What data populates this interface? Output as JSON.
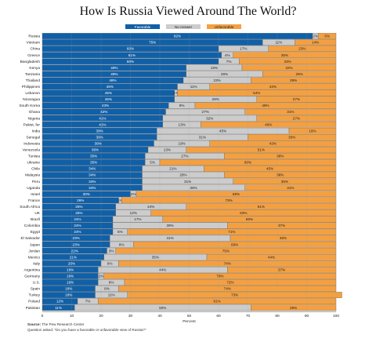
{
  "title": "How Is Russia Viewed Around The World?",
  "source_label": "Source:",
  "source_text": "The Pew Research Center",
  "question_text": "Question asked: \"Do you have a favorable or unfavorable view of Russia?\"",
  "colors": {
    "favorable": "#1060a8",
    "no_answer": "#cccccc",
    "unfavorable": "#f4a041"
  },
  "chart_data": {
    "type": "bar",
    "orientation": "horizontal",
    "stacked": true,
    "xlabel": "Percent",
    "xlim": [
      0,
      100
    ],
    "xticks": [
      0,
      10,
      20,
      30,
      40,
      50,
      60,
      70,
      80,
      90,
      100
    ],
    "grid": true,
    "legend": "top-center",
    "categories": [
      "Russia",
      "Vietnam",
      "China",
      "Greece",
      "Bangladesh",
      "Kenya",
      "Tanzania",
      "Thailand",
      "Philippines",
      "Lebanon",
      "Nicaragua",
      "South Korea",
      "Ghana",
      "Nigeria",
      "Pakist, fer",
      "India",
      "Senegal",
      "Indonesia",
      "Venezuela",
      "Tunisia",
      "Ukraine",
      "Chile",
      "Malaysia",
      "Peru",
      "Uganda",
      "Israel",
      "France",
      "South Africa",
      "UK",
      "Brazil",
      "Colombia",
      "Egypt",
      "El Salvador",
      "Japan",
      "Jordan",
      "Mexico",
      "Italy",
      "Argentina",
      "Germany",
      "U.S.",
      "Spain",
      "Turkey",
      "Poland",
      "Pakistan"
    ],
    "series": [
      {
        "name": "Favorable",
        "values": [
          92,
          75,
          60,
          61,
          60,
          49,
          49,
          48,
          46,
          45,
          45,
          43,
          42,
          41,
          41,
          39,
          39,
          38,
          36,
          35,
          35,
          34,
          34,
          34,
          34,
          30,
          26,
          25,
          25,
          24,
          24,
          24,
          23,
          23,
          22,
          21,
          20,
          19,
          19,
          19,
          18,
          18,
          12,
          11
        ]
      },
      {
        "name": "No Answer",
        "values": [
          2,
          11,
          17,
          4,
          7,
          19,
          26,
          23,
          11,
          1,
          28,
          9,
          27,
          32,
          13,
          45,
          31,
          19,
          13,
          27,
          5,
          21,
          28,
          31,
          35,
          2,
          1,
          24,
          12,
          17,
          39,
          5,
          41,
          8,
          3,
          35,
          6,
          44,
          2,
          9,
          8,
          11,
          7,
          60
        ]
      },
      {
        "name": "Unfavorable",
        "values": [
          6,
          14,
          23,
          35,
          33,
          32,
          25,
          29,
          43,
          54,
          27,
          48,
          31,
          27,
          46,
          16,
          30,
          43,
          51,
          38,
          60,
          45,
          38,
          35,
          31,
          68,
          73,
          51,
          63,
          59,
          37,
          71,
          36,
          69,
          75,
          44,
          74,
          37,
          79,
          72,
          74,
          73,
          81,
          29
        ]
      }
    ]
  }
}
